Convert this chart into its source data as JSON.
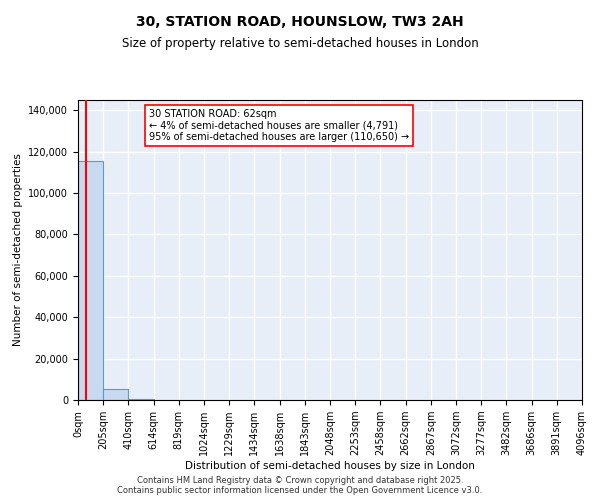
{
  "title": "30, STATION ROAD, HOUNSLOW, TW3 2AH",
  "subtitle": "Size of property relative to semi-detached houses in London",
  "ylabel": "Number of semi-detached properties",
  "xlabel": "Distribution of semi-detached houses by size in London",
  "footer_line1": "Contains HM Land Registry data © Crown copyright and database right 2025.",
  "footer_line2": "Contains public sector information licensed under the Open Government Licence v3.0.",
  "annotation_title": "30 STATION ROAD: 62sqm",
  "annotation_line1": "← 4% of semi-detached houses are smaller (4,791)",
  "annotation_line2": "95% of semi-detached houses are larger (110,650) →",
  "property_size": 62,
  "bar_color": "#c8d9f0",
  "bar_edgecolor": "#5b9bd5",
  "redline_color": "red",
  "background_color": "#e8eef8",
  "grid_color": "white",
  "bins": [
    0,
    205,
    410,
    614,
    819,
    1024,
    1229,
    1434,
    1638,
    1843,
    2048,
    2253,
    2458,
    2662,
    2867,
    3072,
    3277,
    3482,
    3686,
    3891,
    4096
  ],
  "bin_labels": [
    "0sqm",
    "205sqm",
    "410sqm",
    "614sqm",
    "819sqm",
    "1024sqm",
    "1229sqm",
    "1434sqm",
    "1638sqm",
    "1843sqm",
    "2048sqm",
    "2253sqm",
    "2458sqm",
    "2662sqm",
    "2867sqm",
    "3072sqm",
    "3277sqm",
    "3482sqm",
    "3686sqm",
    "3891sqm",
    "4096sqm"
  ],
  "bar_heights": [
    115441,
    5209,
    694,
    0,
    0,
    0,
    0,
    0,
    0,
    0,
    0,
    0,
    0,
    0,
    0,
    0,
    0,
    0,
    0,
    0
  ],
  "ylim": [
    0,
    145000
  ],
  "yticks": [
    0,
    20000,
    40000,
    60000,
    80000,
    100000,
    120000,
    140000
  ],
  "title_fontsize": 10,
  "subtitle_fontsize": 8.5,
  "ylabel_fontsize": 7.5,
  "xlabel_fontsize": 7.5,
  "tick_fontsize": 7,
  "annotation_fontsize": 7,
  "footer_fontsize": 6
}
